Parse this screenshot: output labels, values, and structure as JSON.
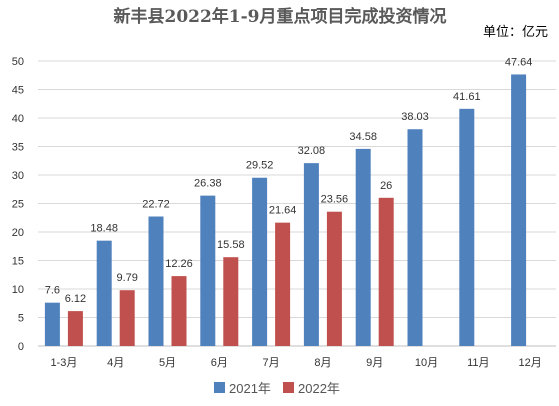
{
  "chart_data": {
    "type": "bar",
    "title": "新丰县2022年1-9月重点项目完成投资情况",
    "unit_label": "单位：亿元",
    "categories": [
      "1-3月",
      "4月",
      "5月",
      "6月",
      "7月",
      "8月",
      "9月",
      "10月",
      "11月",
      "12月"
    ],
    "series": [
      {
        "name": "2021年",
        "color": "#4f81bd",
        "values": [
          7.6,
          18.48,
          22.72,
          26.38,
          29.52,
          32.08,
          34.58,
          38.03,
          41.61,
          47.64
        ]
      },
      {
        "name": "2022年",
        "color": "#c0504d",
        "values": [
          6.12,
          9.79,
          12.26,
          15.58,
          21.64,
          23.56,
          26,
          null,
          null,
          null
        ]
      }
    ],
    "ylim": [
      0,
      50
    ],
    "yticks": [
      0,
      5,
      10,
      15,
      20,
      25,
      30,
      35,
      40,
      45,
      50
    ],
    "grid": true,
    "legend_position": "bottom"
  }
}
